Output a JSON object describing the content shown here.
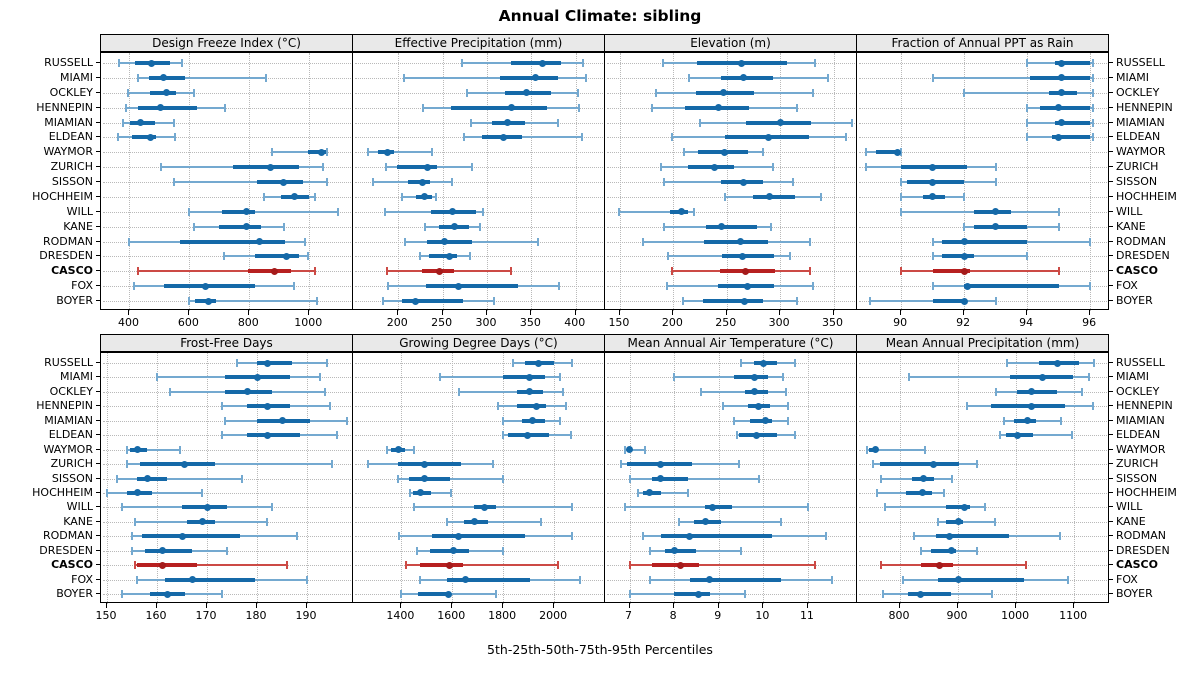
{
  "title": "Annual Climate: sibling",
  "caption": "5th-25th-50th-75th-95th Percentiles",
  "stations": [
    "RUSSELL",
    "MIAMI",
    "OCKLEY",
    "HENNEPIN",
    "MIAMIAN",
    "ELDEAN",
    "WAYMOR",
    "ZURICH",
    "SISSON",
    "HOCHHEIM",
    "WILL",
    "KANE",
    "RODMAN",
    "DRESDEN",
    "CASCO",
    "FOX",
    "BOYER"
  ],
  "highlight_station": "CASCO",
  "colors": {
    "series_dot": "#1569a8",
    "series_box": "#1569a8",
    "series_whisker": "#74a9d0",
    "highlight_dot": "#a51b1b",
    "highlight_box": "#b72020",
    "highlight_whisker": "#cc4a45",
    "strip_bg": "#e9e9e9",
    "grid": "#b9b9b9"
  },
  "chart_data": [
    {
      "type": "dotplot-percentiles",
      "title": "Design Freeze Index (°C)",
      "ticks": [
        400,
        600,
        800,
        1000
      ],
      "domain": [
        305,
        1146
      ],
      "values": [
        [
          365,
          420,
          473,
          535,
          575
        ],
        [
          430,
          465,
          515,
          585,
          855
        ],
        [
          395,
          468,
          525,
          555,
          617
        ],
        [
          390,
          430,
          503,
          625,
          718
        ],
        [
          380,
          403,
          437,
          484,
          548
        ],
        [
          362,
          407,
          470,
          490,
          553
        ],
        [
          875,
          995,
          1040,
          1055,
          1060
        ],
        [
          505,
          745,
          870,
          965,
          1045
        ],
        [
          550,
          825,
          915,
          980,
          1060
        ],
        [
          850,
          905,
          950,
          1000,
          1020
        ],
        [
          600,
          710,
          790,
          820,
          1095
        ],
        [
          615,
          700,
          790,
          840,
          915
        ],
        [
          400,
          570,
          835,
          920,
          985
        ],
        [
          715,
          820,
          925,
          965,
          995
        ],
        [
          430,
          795,
          885,
          940,
          1020
        ],
        [
          415,
          515,
          655,
          820,
          950
        ],
        [
          600,
          620,
          665,
          690,
          1025
        ]
      ]
    },
    {
      "type": "dotplot-percentiles",
      "title": "Effective Precipitation (mm)",
      "ticks": [
        200,
        250,
        300,
        350,
        400
      ],
      "domain": [
        149,
        433
      ],
      "values": [
        [
          272,
          327,
          363,
          383,
          408
        ],
        [
          207,
          315,
          355,
          380,
          412
        ],
        [
          278,
          320,
          345,
          372,
          403
        ],
        [
          228,
          260,
          328,
          368,
          404
        ],
        [
          282,
          306,
          323,
          343,
          380
        ],
        [
          274,
          294,
          319,
          340,
          407
        ],
        [
          166,
          177,
          188,
          195,
          238
        ],
        [
          186,
          199,
          233,
          244,
          283
        ],
        [
          171,
          211,
          227,
          236,
          261
        ],
        [
          204,
          220,
          230,
          238,
          242
        ],
        [
          185,
          237,
          261,
          288,
          296
        ],
        [
          230,
          246,
          263,
          280,
          292
        ],
        [
          208,
          232,
          252,
          283,
          357
        ],
        [
          224,
          235,
          258,
          266,
          281
        ],
        [
          187,
          227,
          247,
          263,
          327
        ],
        [
          188,
          231,
          268,
          335,
          381
        ],
        [
          183,
          204,
          219,
          273,
          308
        ]
      ]
    },
    {
      "type": "dotplot-percentiles",
      "title": "Elevation (m)",
      "ticks": [
        150,
        200,
        250,
        300,
        350
      ],
      "domain": [
        136,
        372
      ],
      "values": [
        [
          190,
          222,
          264,
          306,
          333
        ],
        [
          215,
          245,
          266,
          293,
          345
        ],
        [
          184,
          221,
          247,
          276,
          331
        ],
        [
          180,
          211,
          242,
          271,
          316
        ],
        [
          225,
          268,
          300,
          329,
          367
        ],
        [
          199,
          248,
          289,
          327,
          362
        ],
        [
          210,
          223,
          248,
          270,
          284
        ],
        [
          188,
          214,
          239,
          257,
          293
        ],
        [
          191,
          245,
          266,
          284,
          312
        ],
        [
          248,
          275,
          290,
          314,
          338
        ],
        [
          149,
          197,
          208,
          214,
          219
        ],
        [
          191,
          231,
          245,
          278,
          291
        ],
        [
          172,
          229,
          263,
          289,
          328
        ],
        [
          195,
          246,
          265,
          294,
          309
        ],
        [
          199,
          244,
          268,
          295,
          328
        ],
        [
          194,
          242,
          269,
          294,
          331
        ],
        [
          209,
          228,
          267,
          284,
          316
        ]
      ]
    },
    {
      "type": "dotplot-percentiles",
      "title": "Fraction of Annual PPT as Rain",
      "ticks": [
        90,
        92,
        94,
        96
      ],
      "domain": [
        88.6,
        96.6
      ],
      "values": [
        [
          94.0,
          94.9,
          95.1,
          96.0,
          96.1
        ],
        [
          91.0,
          94.1,
          95.1,
          96.0,
          96.1
        ],
        [
          92.0,
          94.7,
          95.1,
          95.6,
          96.1
        ],
        [
          94.0,
          94.4,
          95.0,
          96.0,
          96.1
        ],
        [
          94.0,
          94.9,
          95.1,
          96.0,
          96.1
        ],
        [
          94.0,
          94.8,
          95.0,
          96.0,
          96.1
        ],
        [
          88.9,
          89.2,
          89.9,
          89.95,
          90.0
        ],
        [
          88.9,
          90.0,
          91.0,
          92.1,
          93.0
        ],
        [
          90.0,
          90.2,
          91.0,
          92.0,
          93.0
        ],
        [
          90.0,
          90.7,
          91.0,
          91.4,
          92.0
        ],
        [
          90.0,
          92.3,
          93.0,
          93.5,
          95.0
        ],
        [
          92.0,
          92.3,
          93.0,
          94.0,
          95.0
        ],
        [
          91.0,
          91.3,
          92.0,
          94.0,
          96.0
        ],
        [
          91.0,
          91.3,
          92.0,
          92.3,
          94.0
        ],
        [
          90.0,
          91.0,
          92.0,
          92.2,
          95.0
        ],
        [
          91.0,
          92.0,
          92.1,
          95.0,
          96.0
        ],
        [
          89.0,
          91.0,
          92.0,
          92.1,
          93.0
        ]
      ]
    },
    {
      "type": "dotplot-percentiles",
      "title": "Frost-Free Days",
      "ticks": [
        150,
        160,
        170,
        180,
        190
      ],
      "domain": [
        148.8,
        199.2
      ],
      "values": [
        [
          176,
          180,
          182,
          187,
          194
        ],
        [
          160,
          173.5,
          180,
          186.5,
          192.5
        ],
        [
          162.5,
          173.5,
          178,
          183,
          193.5
        ],
        [
          173,
          178,
          182,
          186.5,
          194.5
        ],
        [
          173.5,
          180,
          185,
          190.5,
          198
        ],
        [
          173,
          178,
          182,
          188.5,
          196
        ],
        [
          154,
          154.5,
          156,
          158,
          164.5
        ],
        [
          154,
          156.5,
          165.5,
          171.5,
          195
        ],
        [
          152,
          156,
          158,
          162,
          177
        ],
        [
          150,
          154,
          156,
          159,
          169
        ],
        [
          153,
          165,
          170,
          174,
          183
        ],
        [
          155.5,
          166,
          169,
          171.5,
          182
        ],
        [
          155,
          157,
          165,
          176.5,
          188
        ],
        [
          155,
          157.5,
          161,
          167,
          174
        ],
        [
          155.5,
          156,
          161,
          168,
          186
        ],
        [
          156,
          161.5,
          167,
          179.5,
          190
        ],
        [
          153,
          158.5,
          162,
          165.5,
          173
        ]
      ]
    },
    {
      "type": "dotplot-percentiles",
      "title": "Growing Degree Days (°C)",
      "ticks": [
        1400,
        1600,
        1800,
        2000
      ],
      "domain": [
        1210,
        2200
      ],
      "values": [
        [
          1840,
          1885,
          1940,
          2000,
          2070
        ],
        [
          1550,
          1800,
          1905,
          1965,
          2025
        ],
        [
          1625,
          1855,
          1905,
          1955,
          2035
        ],
        [
          1780,
          1855,
          1930,
          1970,
          2045
        ],
        [
          1800,
          1875,
          1915,
          1965,
          2025
        ],
        [
          1800,
          1820,
          1895,
          1980,
          2065
        ],
        [
          1345,
          1360,
          1390,
          1415,
          1450
        ],
        [
          1270,
          1385,
          1490,
          1635,
          1760
        ],
        [
          1385,
          1430,
          1490,
          1590,
          1800
        ],
        [
          1435,
          1445,
          1475,
          1515,
          1595
        ],
        [
          1450,
          1685,
          1725,
          1770,
          2070
        ],
        [
          1580,
          1645,
          1687,
          1740,
          1950
        ],
        [
          1390,
          1520,
          1624,
          1885,
          2070
        ],
        [
          1463,
          1512,
          1604,
          1664,
          1800
        ],
        [
          1420,
          1472,
          1588,
          1644,
          2015
        ],
        [
          1472,
          1578,
          1650,
          1905,
          2100
        ],
        [
          1400,
          1466,
          1584,
          1595,
          1770
        ]
      ]
    },
    {
      "type": "dotplot-percentiles",
      "title": "Mean Annual Air Temperature (°C)",
      "ticks": [
        7,
        8,
        9,
        10,
        11
      ],
      "domain": [
        6.45,
        12.1
      ],
      "values": [
        [
          9.5,
          9.8,
          10.0,
          10.3,
          10.7
        ],
        [
          8.0,
          9.35,
          9.8,
          10.1,
          10.45
        ],
        [
          8.6,
          9.6,
          9.8,
          10.1,
          10.5
        ],
        [
          9.1,
          9.65,
          9.9,
          10.15,
          10.55
        ],
        [
          9.35,
          9.7,
          10.05,
          10.2,
          10.55
        ],
        [
          9.4,
          9.45,
          9.85,
          10.3,
          10.7
        ],
        [
          6.9,
          6.95,
          7.0,
          7.05,
          7.35
        ],
        [
          6.8,
          6.95,
          7.7,
          8.4,
          9.45
        ],
        [
          7.0,
          7.5,
          7.7,
          8.3,
          9.9
        ],
        [
          7.2,
          7.3,
          7.45,
          7.7,
          8.3
        ],
        [
          6.9,
          8.7,
          8.85,
          9.3,
          11.0
        ],
        [
          8.1,
          8.45,
          8.7,
          9.05,
          10.4
        ],
        [
          7.3,
          7.7,
          8.35,
          10.2,
          11.4
        ],
        [
          7.45,
          7.8,
          8.0,
          8.5,
          9.5
        ],
        [
          7.0,
          7.5,
          8.15,
          8.55,
          11.15
        ],
        [
          7.45,
          8.35,
          8.8,
          10.4,
          11.55
        ],
        [
          7.0,
          8.0,
          8.55,
          8.8,
          9.6
        ]
      ]
    },
    {
      "type": "dotplot-percentiles",
      "title": "Mean Annual Precipitation (mm)",
      "ticks": [
        800,
        900,
        1000,
        1100
      ],
      "domain": [
        726,
        1160
      ],
      "values": [
        [
          985,
          1040,
          1072,
          1108,
          1135
        ],
        [
          815,
          990,
          1046,
          1098,
          1126
        ],
        [
          966,
          1002,
          1026,
          1070,
          1113
        ],
        [
          915,
          956,
          1026,
          1085,
          1132
        ],
        [
          980,
          996,
          1019,
          1035,
          1078
        ],
        [
          973,
          982,
          1003,
          1029,
          1097
        ],
        [
          743,
          746,
          757,
          763,
          843
        ],
        [
          753,
          766,
          858,
          902,
          932
        ],
        [
          767,
          820,
          840,
          859,
          890
        ],
        [
          761,
          810,
          838,
          856,
          876
        ],
        [
          775,
          879,
          911,
          921,
          947
        ],
        [
          866,
          880,
          901,
          908,
          963
        ],
        [
          824,
          862,
          885,
          988,
          1075
        ],
        [
          836,
          853,
          888,
          897,
          932
        ],
        [
          768,
          836,
          868,
          891,
          1017
        ],
        [
          806,
          866,
          901,
          1013,
          1090
        ],
        [
          771,
          814,
          836,
          888,
          959
        ]
      ]
    }
  ]
}
